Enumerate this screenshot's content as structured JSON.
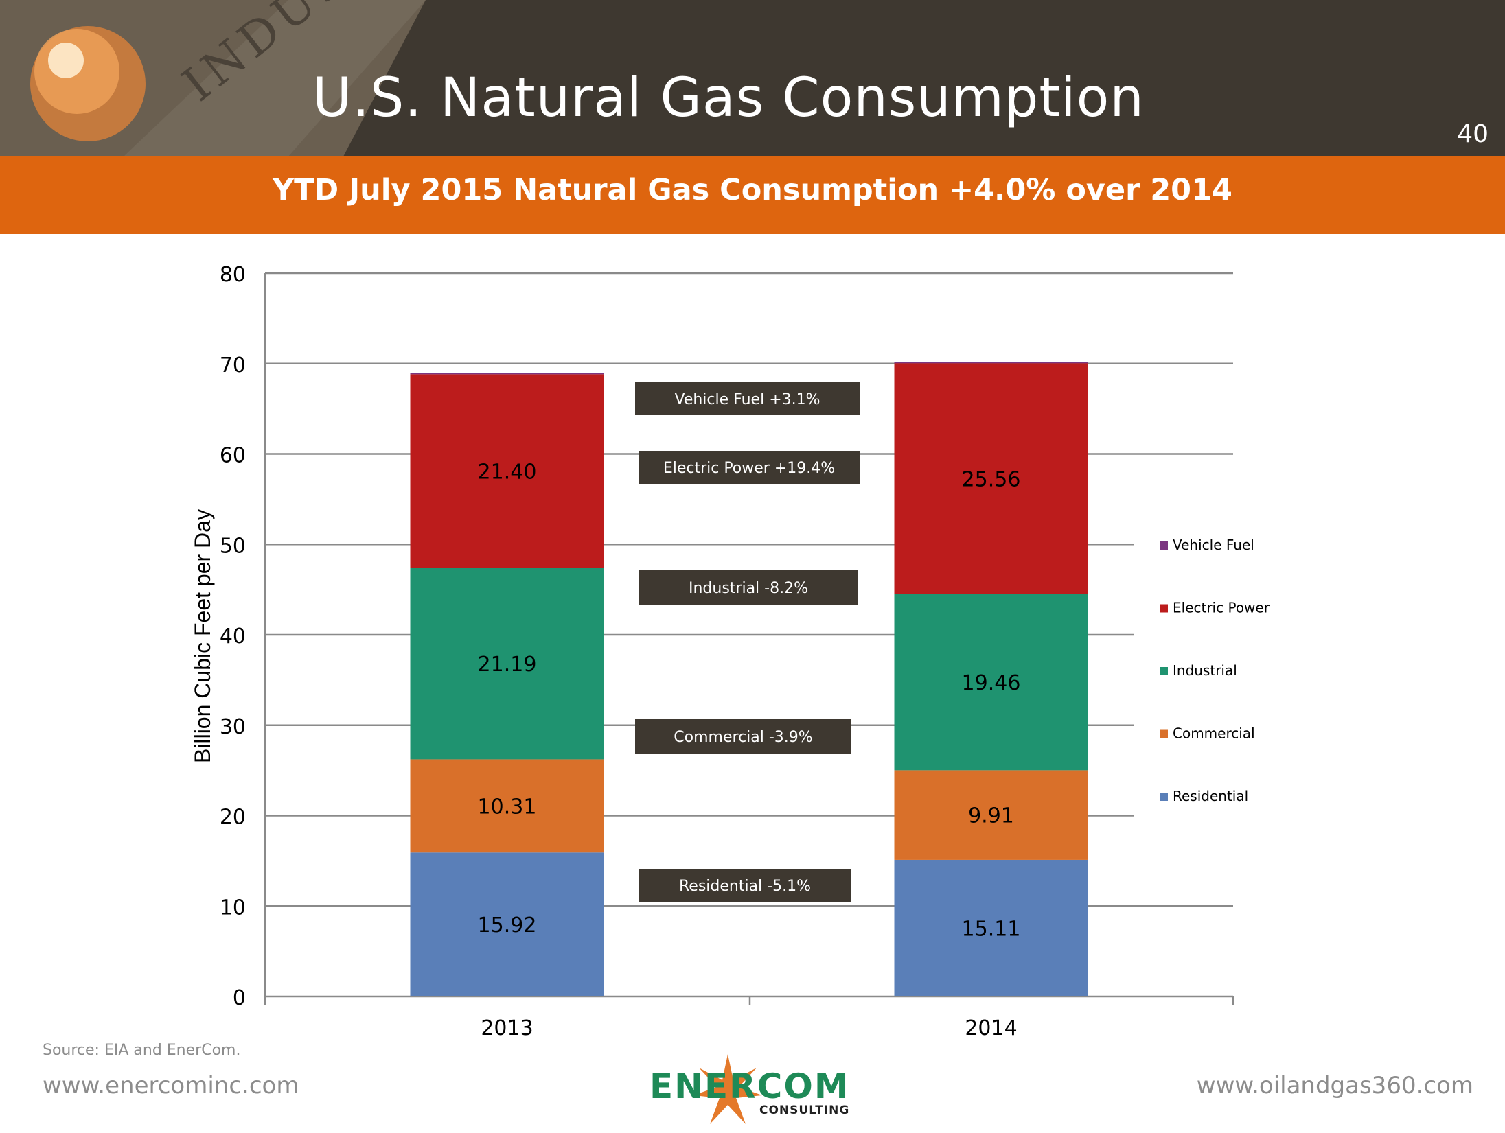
{
  "header": {
    "title": "U.S. Natural Gas Consumption",
    "page_number": "40",
    "banner_text": "INDUSTR"
  },
  "subheader": {
    "title": "YTD July 2015 Natural Gas Consumption +4.0% over 2014"
  },
  "chart_data": {
    "type": "bar",
    "stacked": true,
    "title": "",
    "xlabel": "",
    "ylabel": "Billion Cubic Feet per Day",
    "ylim": [
      0,
      80
    ],
    "yticks": [
      0,
      10,
      20,
      30,
      40,
      50,
      60,
      70,
      80
    ],
    "categories": [
      "2013",
      "2014"
    ],
    "grid": true,
    "legend_position": "right",
    "series": [
      {
        "name": "Residential",
        "values": [
          15.92,
          15.11
        ],
        "labels": [
          "15.92",
          "15.11"
        ],
        "color": "#5a7fb8"
      },
      {
        "name": "Commercial",
        "values": [
          10.31,
          9.91
        ],
        "labels": [
          "10.31",
          "9.91"
        ],
        "color": "#d9702a"
      },
      {
        "name": "Industrial",
        "values": [
          21.19,
          19.46
        ],
        "labels": [
          "21.19",
          "19.46"
        ],
        "color": "#1f9370"
      },
      {
        "name": "Electric Power",
        "values": [
          21.4,
          25.56
        ],
        "labels": [
          "21.40",
          "25.56"
        ],
        "color": "#bc1c1c"
      },
      {
        "name": "Vehicle Fuel",
        "values": [
          0.13,
          0.13
        ],
        "labels": [
          "",
          ""
        ],
        "color": "#7b3580"
      }
    ],
    "legend_order": [
      "Vehicle Fuel",
      "Electric Power",
      "Industrial",
      "Commercial",
      "Residential"
    ],
    "annotations": [
      {
        "text": "Vehicle Fuel +3.1%",
        "series": "Vehicle Fuel"
      },
      {
        "text": "Electric Power +19.4%",
        "series": "Electric Power"
      },
      {
        "text": "Industrial  -8.2%",
        "series": "Industrial"
      },
      {
        "text": "Commercial -3.9%",
        "series": "Commercial"
      },
      {
        "text": "Residential  -5.1%",
        "series": "Residential"
      }
    ]
  },
  "footer": {
    "source": "Source: EIA and EnerCom.",
    "url_left": "www.enercominc.com",
    "url_right": "www.oilandgas360.com",
    "logo_text": "ENERCOM",
    "logo_sub": "CONSULTING"
  },
  "colors": {
    "header_bg": "#3e3830",
    "subheader_bg": "#de650f",
    "annotation_bg": "#3e3830"
  }
}
